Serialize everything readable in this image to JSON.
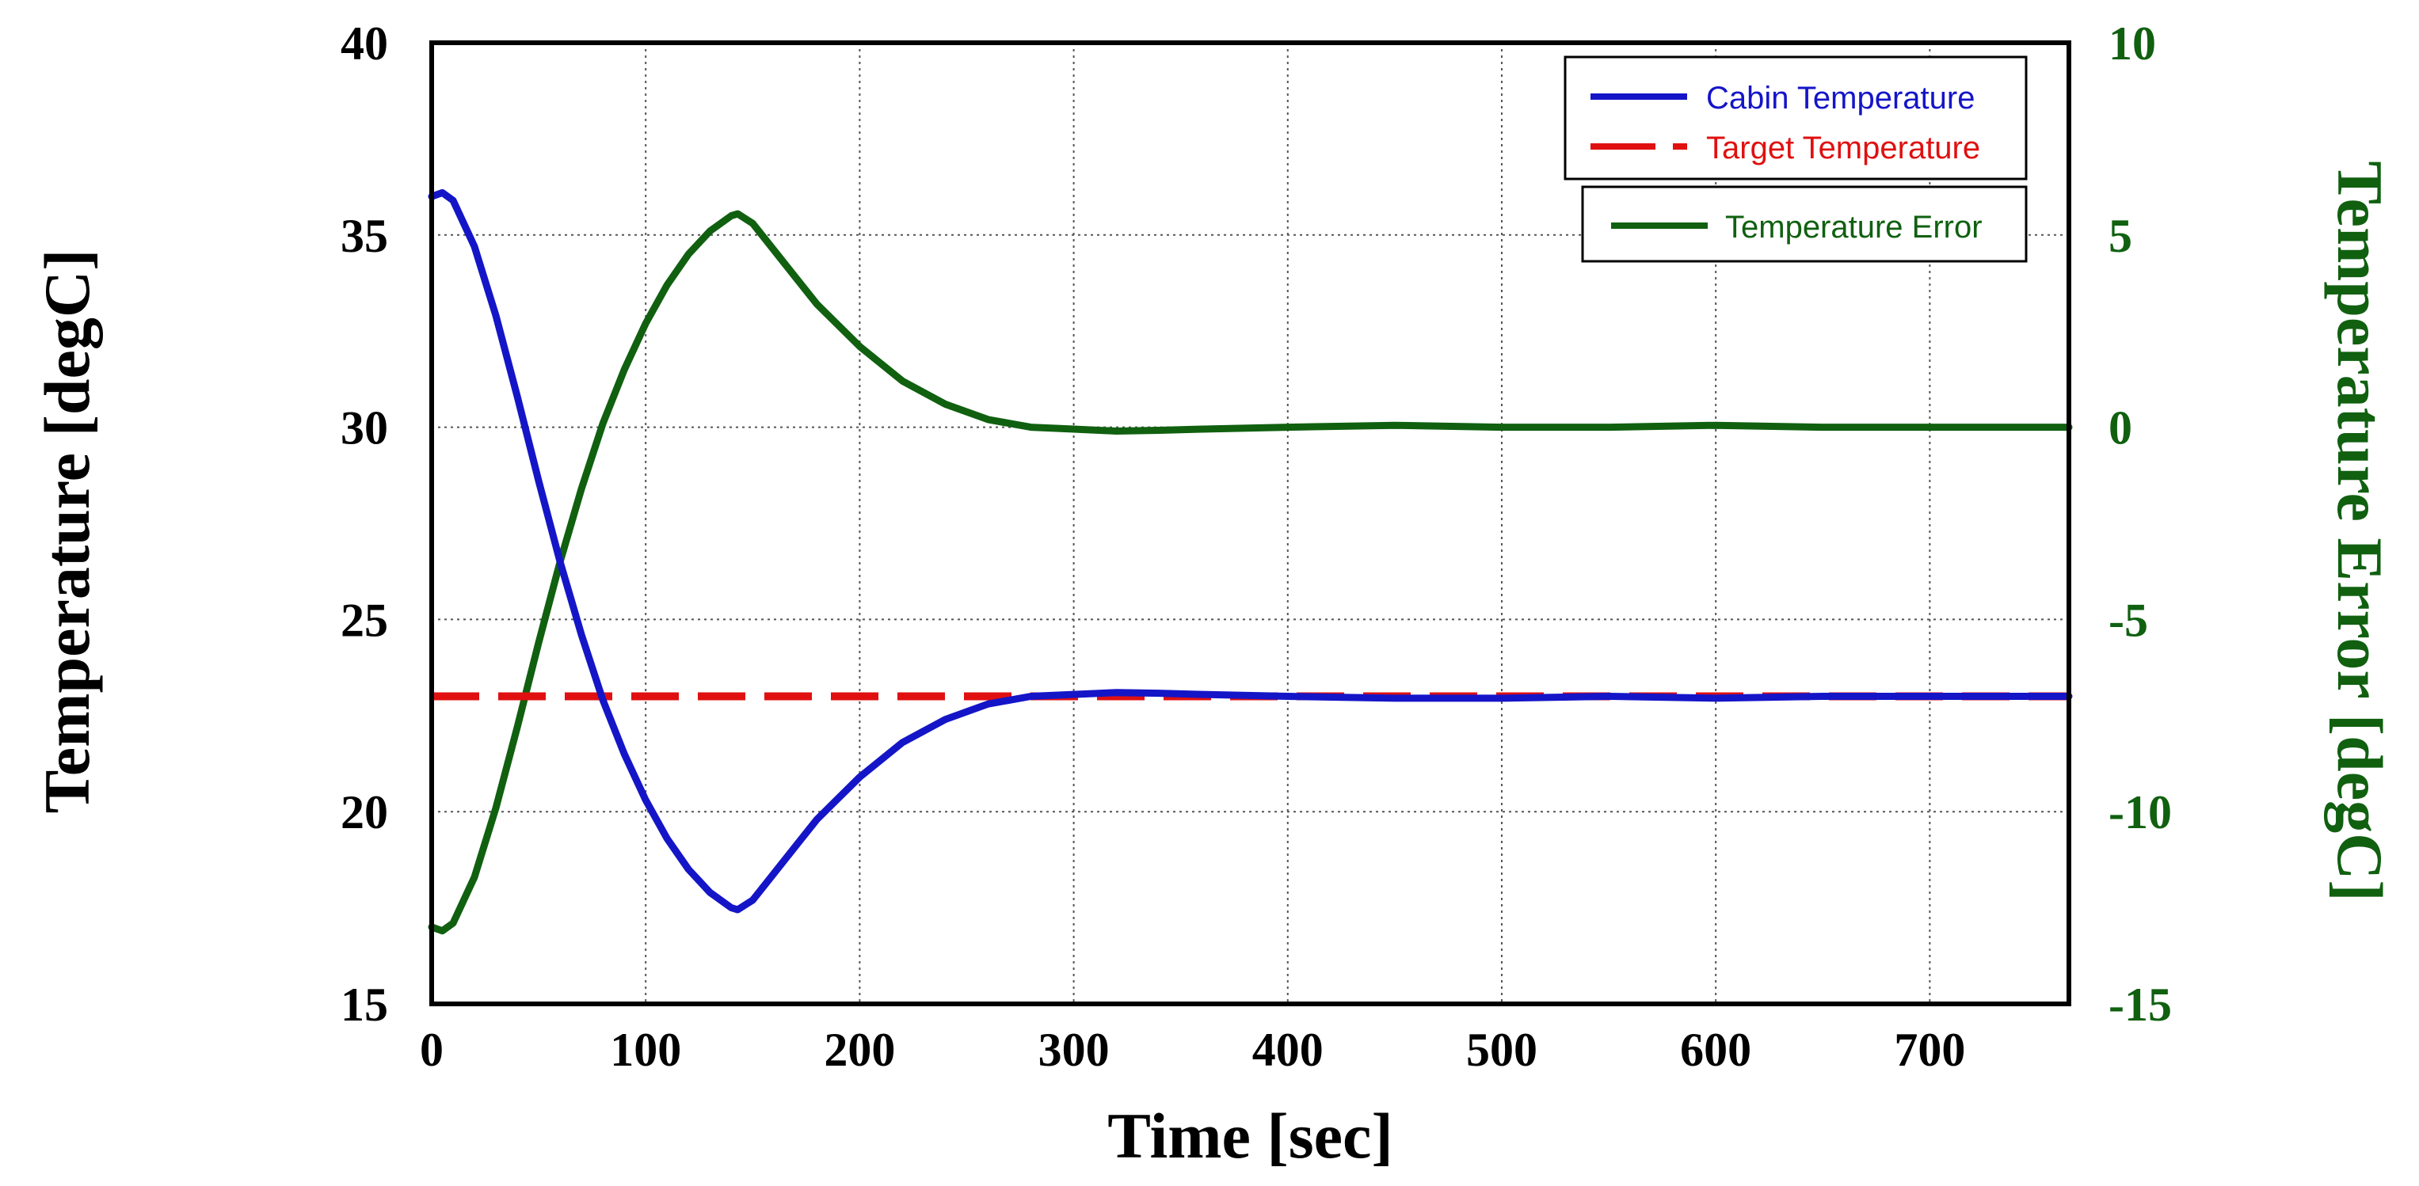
{
  "chart_data": {
    "type": "line",
    "title": "",
    "xlabel": "Time [sec]",
    "ylabel": "Temperature [degC]",
    "y2label": "Temperature Error [degC]",
    "xlim": [
      0,
      765
    ],
    "ylim": [
      15,
      40
    ],
    "y2lim": [
      -15,
      10
    ],
    "xticks": [
      0,
      100,
      200,
      300,
      400,
      500,
      600,
      700
    ],
    "yticks": [
      15,
      20,
      25,
      30,
      35,
      40
    ],
    "y2ticks": [
      -15,
      -10,
      -5,
      0,
      5,
      10
    ],
    "grid": true,
    "series": [
      {
        "name": "Cabin Temperature",
        "axis": "left",
        "color": "#1515c8",
        "style": "solid",
        "x": [
          0,
          5,
          10,
          20,
          30,
          40,
          50,
          60,
          70,
          80,
          90,
          100,
          110,
          120,
          130,
          140,
          143,
          150,
          160,
          170,
          180,
          200,
          220,
          240,
          260,
          280,
          300,
          320,
          340,
          360,
          400,
          450,
          500,
          550,
          600,
          650,
          700,
          765
        ],
        "y": [
          36.0,
          36.1,
          35.9,
          34.7,
          32.9,
          30.8,
          28.6,
          26.5,
          24.6,
          22.9,
          21.5,
          20.3,
          19.3,
          18.5,
          17.9,
          17.5,
          17.45,
          17.7,
          18.4,
          19.1,
          19.8,
          20.9,
          21.8,
          22.4,
          22.8,
          23.0,
          23.05,
          23.1,
          23.08,
          23.05,
          23.0,
          22.95,
          22.95,
          23.0,
          22.95,
          23.0,
          23.0,
          23.0
        ]
      },
      {
        "name": "Target Temperature",
        "axis": "left",
        "color": "#e01010",
        "style": "dashed",
        "x": [
          0,
          765
        ],
        "y": [
          23.0,
          23.0
        ]
      },
      {
        "name": "Temperature Error",
        "axis": "right",
        "color": "#106010",
        "style": "solid",
        "x": [
          0,
          5,
          10,
          20,
          30,
          40,
          50,
          60,
          70,
          80,
          90,
          100,
          110,
          120,
          130,
          140,
          143,
          150,
          160,
          170,
          180,
          200,
          220,
          240,
          260,
          280,
          300,
          320,
          340,
          360,
          400,
          450,
          500,
          550,
          600,
          650,
          700,
          765
        ],
        "y": [
          -13.0,
          -13.1,
          -12.9,
          -11.7,
          -9.9,
          -7.8,
          -5.6,
          -3.5,
          -1.6,
          0.1,
          1.5,
          2.7,
          3.7,
          4.5,
          5.1,
          5.5,
          5.55,
          5.3,
          4.6,
          3.9,
          3.2,
          2.1,
          1.2,
          0.6,
          0.2,
          0.0,
          -0.05,
          -0.1,
          -0.08,
          -0.05,
          0.0,
          0.05,
          0.0,
          0.0,
          0.05,
          0.0,
          0.0,
          0.0
        ]
      }
    ],
    "legend": [
      {
        "label": "Cabin Temperature",
        "color": "#1515c8"
      },
      {
        "label": "Target Temperature",
        "color": "#e01010"
      },
      {
        "label": "Temperature Error",
        "color": "#106010"
      }
    ],
    "colors": {
      "left_axis": "#000000",
      "right_axis": "#106010",
      "grid": "#555555"
    }
  }
}
